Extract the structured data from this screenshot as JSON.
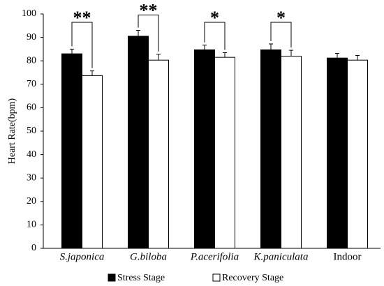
{
  "chart_data": {
    "type": "bar",
    "y_label": "Heart Rate(bpm)",
    "categories": [
      "S.japonica",
      "G.biloba",
      "P.acerifolia",
      "K.paniculata",
      "Indoor"
    ],
    "italic_categories": [
      true,
      true,
      true,
      true,
      false
    ],
    "series": [
      {
        "name": "Stress Stage",
        "color": "#000000",
        "values": [
          83,
          90.5,
          84.7,
          84.7,
          81.2
        ],
        "errors": [
          2,
          2.5,
          2,
          2.5,
          2
        ]
      },
      {
        "name": "Recovery Stage",
        "color": "#ffffff",
        "values": [
          73.7,
          80.3,
          81.5,
          82,
          80.3
        ],
        "errors": [
          2,
          2.5,
          2,
          2.5,
          2
        ]
      }
    ],
    "significance": [
      "**",
      "**",
      "*",
      "*",
      null
    ],
    "ylim": [
      0,
      100
    ],
    "yticks": [
      0,
      10,
      20,
      30,
      40,
      50,
      60,
      70,
      80,
      90,
      100
    ],
    "legend": "bottom"
  }
}
